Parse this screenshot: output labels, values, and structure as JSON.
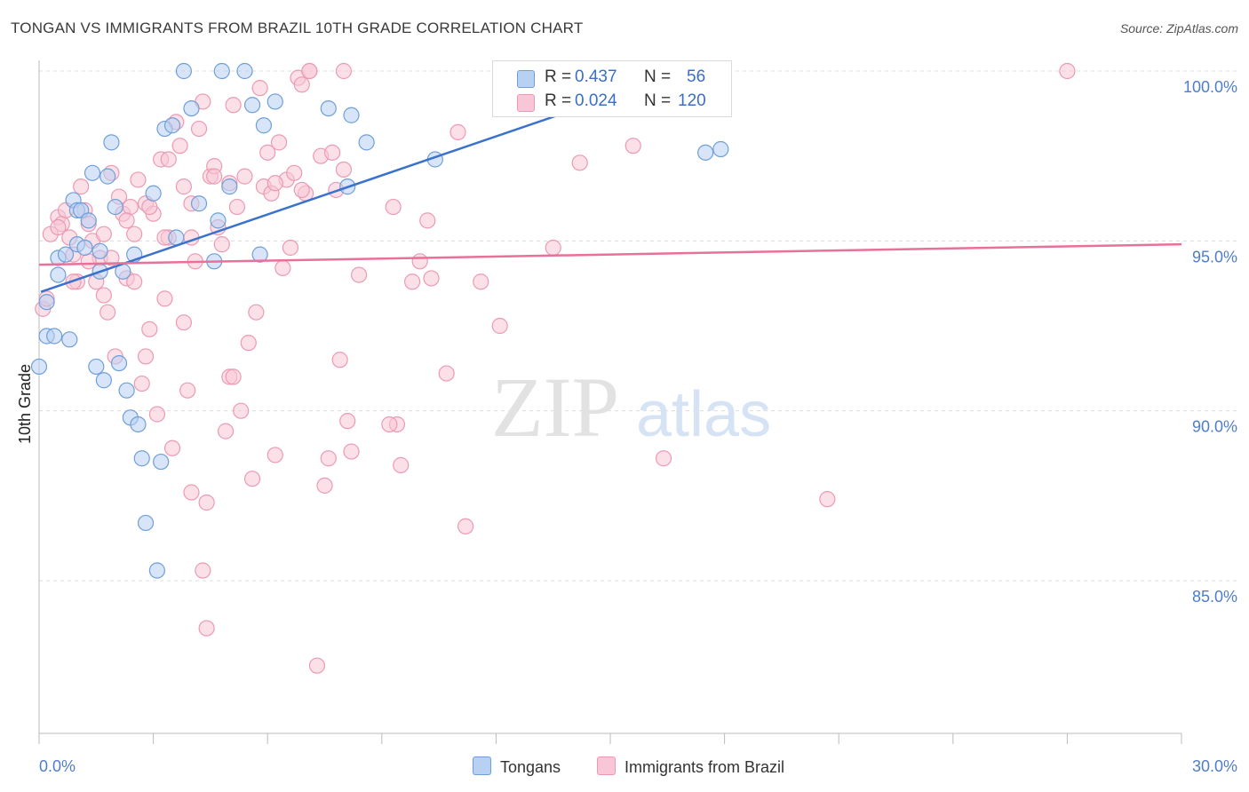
{
  "title": "TONGAN VS IMMIGRANTS FROM BRAZIL 10TH GRADE CORRELATION CHART",
  "source": "Source: ZipAtlas.com",
  "watermark": {
    "zip": "ZIP",
    "atlas": "atlas"
  },
  "legend": {
    "tongans": {
      "r_label": "R = ",
      "r_value": "0.437",
      "n_label": "N = ",
      "n_value": "56"
    },
    "brazil": {
      "r_label": "R = ",
      "r_value": "0.024",
      "n_label": "N = ",
      "n_value": "120"
    }
  },
  "bottom_legend": {
    "tongans": "Tongans",
    "brazil": "Immigrants from Brazil"
  },
  "colors": {
    "tongan_fill": "#b8d0f2",
    "tongan_stroke": "#6f9fd8",
    "tongan_line": "#3a72cc",
    "brazil_fill": "#f8c6d6",
    "brazil_stroke": "#ec9ab4",
    "brazil_line": "#e8709a",
    "axis_text": "#4f7ec9"
  },
  "chart_data": {
    "type": "scatter",
    "ylabel": "10th Grade",
    "xlabel": "",
    "xlim": [
      0,
      30
    ],
    "ylim": [
      80.5,
      100.7
    ],
    "x_tick_labels": [
      "0.0%",
      "30.0%"
    ],
    "y_ticks": [
      100,
      95,
      90,
      85
    ],
    "y_tick_labels": [
      "100.0%",
      "95.0%",
      "90.0%",
      "85.0%"
    ],
    "grid": true,
    "series": [
      {
        "name": "Tongans",
        "r": 0.437,
        "n": 56,
        "trend": [
          [
            0.05,
            93.5
          ],
          [
            16.5,
            99.8
          ]
        ],
        "points": [
          [
            0.0,
            91.3
          ],
          [
            0.2,
            92.2
          ],
          [
            0.2,
            93.2
          ],
          [
            0.4,
            92.2
          ],
          [
            0.5,
            94.0
          ],
          [
            0.5,
            94.5
          ],
          [
            0.7,
            94.6
          ],
          [
            0.8,
            92.1
          ],
          [
            0.9,
            96.2
          ],
          [
            1.0,
            95.9
          ],
          [
            1.0,
            94.9
          ],
          [
            1.1,
            95.9
          ],
          [
            1.2,
            94.8
          ],
          [
            1.3,
            95.6
          ],
          [
            1.4,
            97.0
          ],
          [
            1.5,
            91.3
          ],
          [
            1.6,
            94.1
          ],
          [
            1.6,
            94.7
          ],
          [
            1.7,
            90.9
          ],
          [
            1.8,
            96.9
          ],
          [
            1.9,
            97.9
          ],
          [
            2.0,
            96.0
          ],
          [
            2.1,
            91.4
          ],
          [
            2.2,
            94.1
          ],
          [
            2.3,
            90.6
          ],
          [
            2.4,
            89.8
          ],
          [
            2.5,
            94.6
          ],
          [
            2.6,
            89.6
          ],
          [
            2.7,
            88.6
          ],
          [
            2.8,
            86.7
          ],
          [
            3.0,
            96.4
          ],
          [
            3.1,
            85.3
          ],
          [
            3.2,
            88.5
          ],
          [
            3.3,
            98.3
          ],
          [
            3.5,
            98.4
          ],
          [
            3.6,
            95.1
          ],
          [
            3.8,
            100.0
          ],
          [
            4.0,
            98.9
          ],
          [
            4.2,
            96.1
          ],
          [
            4.6,
            94.4
          ],
          [
            4.7,
            95.6
          ],
          [
            4.8,
            100.0
          ],
          [
            5.0,
            96.6
          ],
          [
            5.4,
            100.0
          ],
          [
            5.6,
            99.0
          ],
          [
            5.8,
            94.6
          ],
          [
            5.9,
            98.4
          ],
          [
            6.2,
            99.1
          ],
          [
            7.6,
            98.9
          ],
          [
            8.1,
            96.6
          ],
          [
            8.2,
            98.7
          ],
          [
            8.6,
            97.9
          ],
          [
            10.4,
            97.4
          ],
          [
            12.6,
            99.4
          ],
          [
            17.5,
            97.6
          ],
          [
            17.9,
            97.7
          ]
        ]
      },
      {
        "name": "Immigrants from Brazil",
        "r": 0.024,
        "n": 120,
        "trend": [
          [
            0.0,
            94.3
          ],
          [
            30.0,
            94.9
          ]
        ],
        "points": [
          [
            0.1,
            93.0
          ],
          [
            0.2,
            93.3
          ],
          [
            0.3,
            95.2
          ],
          [
            0.5,
            95.7
          ],
          [
            0.6,
            95.5
          ],
          [
            0.7,
            95.9
          ],
          [
            0.8,
            95.1
          ],
          [
            0.9,
            94.6
          ],
          [
            1.0,
            93.8
          ],
          [
            1.1,
            96.6
          ],
          [
            1.2,
            95.9
          ],
          [
            1.3,
            95.5
          ],
          [
            1.4,
            95.0
          ],
          [
            1.5,
            93.8
          ],
          [
            1.6,
            94.5
          ],
          [
            1.7,
            93.4
          ],
          [
            1.8,
            92.9
          ],
          [
            1.9,
            97.0
          ],
          [
            2.0,
            91.6
          ],
          [
            2.1,
            96.3
          ],
          [
            2.2,
            95.8
          ],
          [
            2.3,
            93.9
          ],
          [
            2.4,
            96.0
          ],
          [
            2.5,
            95.2
          ],
          [
            2.6,
            96.8
          ],
          [
            2.7,
            90.8
          ],
          [
            2.8,
            96.1
          ],
          [
            2.9,
            92.4
          ],
          [
            3.0,
            95.8
          ],
          [
            3.1,
            89.9
          ],
          [
            3.2,
            97.4
          ],
          [
            3.3,
            93.3
          ],
          [
            3.4,
            95.1
          ],
          [
            3.5,
            88.9
          ],
          [
            3.6,
            98.5
          ],
          [
            3.7,
            97.8
          ],
          [
            3.8,
            96.6
          ],
          [
            3.9,
            90.6
          ],
          [
            4.0,
            87.6
          ],
          [
            4.1,
            94.4
          ],
          [
            4.2,
            98.3
          ],
          [
            4.3,
            99.1
          ],
          [
            4.4,
            87.3
          ],
          [
            4.5,
            96.9
          ],
          [
            4.6,
            97.2
          ],
          [
            4.7,
            95.4
          ],
          [
            4.8,
            94.9
          ],
          [
            4.9,
            89.4
          ],
          [
            5.0,
            91.0
          ],
          [
            5.1,
            99.0
          ],
          [
            5.2,
            96.0
          ],
          [
            5.3,
            90.0
          ],
          [
            5.4,
            96.9
          ],
          [
            5.5,
            92.0
          ],
          [
            5.6,
            88.0
          ],
          [
            5.7,
            92.9
          ],
          [
            5.8,
            99.5
          ],
          [
            5.9,
            96.6
          ],
          [
            6.0,
            97.6
          ],
          [
            6.1,
            96.4
          ],
          [
            6.2,
            88.7
          ],
          [
            6.3,
            97.9
          ],
          [
            6.4,
            94.2
          ],
          [
            6.5,
            96.8
          ],
          [
            6.6,
            94.8
          ],
          [
            6.7,
            97.0
          ],
          [
            6.8,
            99.8
          ],
          [
            6.9,
            99.6
          ],
          [
            7.0,
            96.4
          ],
          [
            7.1,
            100.0
          ],
          [
            7.3,
            82.5
          ],
          [
            7.4,
            97.5
          ],
          [
            7.5,
            87.8
          ],
          [
            7.6,
            88.6
          ],
          [
            7.7,
            97.6
          ],
          [
            7.8,
            96.5
          ],
          [
            7.9,
            91.5
          ],
          [
            8.0,
            100.0
          ],
          [
            8.1,
            89.7
          ],
          [
            8.2,
            88.8
          ],
          [
            8.4,
            94.0
          ],
          [
            9.3,
            96.0
          ],
          [
            9.4,
            89.6
          ],
          [
            9.5,
            88.4
          ],
          [
            9.8,
            93.8
          ],
          [
            10.0,
            94.4
          ],
          [
            10.3,
            93.9
          ],
          [
            10.7,
            91.1
          ],
          [
            11.0,
            98.2
          ],
          [
            11.2,
            86.6
          ],
          [
            11.6,
            93.8
          ],
          [
            12.1,
            92.5
          ],
          [
            13.5,
            94.8
          ],
          [
            14.2,
            97.3
          ],
          [
            15.6,
            97.8
          ],
          [
            16.4,
            88.6
          ],
          [
            20.7,
            87.4
          ],
          [
            27.0,
            100.0
          ],
          [
            3.3,
            95.1
          ],
          [
            4.0,
            95.1
          ],
          [
            4.3,
            85.3
          ],
          [
            4.4,
            83.6
          ],
          [
            5.1,
            91.0
          ],
          [
            2.5,
            93.8
          ],
          [
            1.7,
            95.2
          ],
          [
            2.9,
            96.0
          ],
          [
            3.4,
            97.4
          ],
          [
            4.6,
            96.9
          ],
          [
            6.2,
            96.7
          ],
          [
            6.9,
            96.5
          ],
          [
            7.1,
            100.0
          ],
          [
            5.0,
            96.7
          ],
          [
            4.0,
            96.1
          ],
          [
            2.3,
            95.6
          ],
          [
            0.9,
            93.8
          ],
          [
            0.5,
            95.4
          ],
          [
            1.3,
            94.4
          ],
          [
            1.9,
            94.5
          ],
          [
            2.8,
            91.6
          ],
          [
            3.8,
            92.6
          ],
          [
            9.2,
            89.6
          ],
          [
            12.6,
            100.0
          ],
          [
            8.0,
            97.1
          ],
          [
            10.2,
            95.6
          ]
        ]
      }
    ]
  }
}
